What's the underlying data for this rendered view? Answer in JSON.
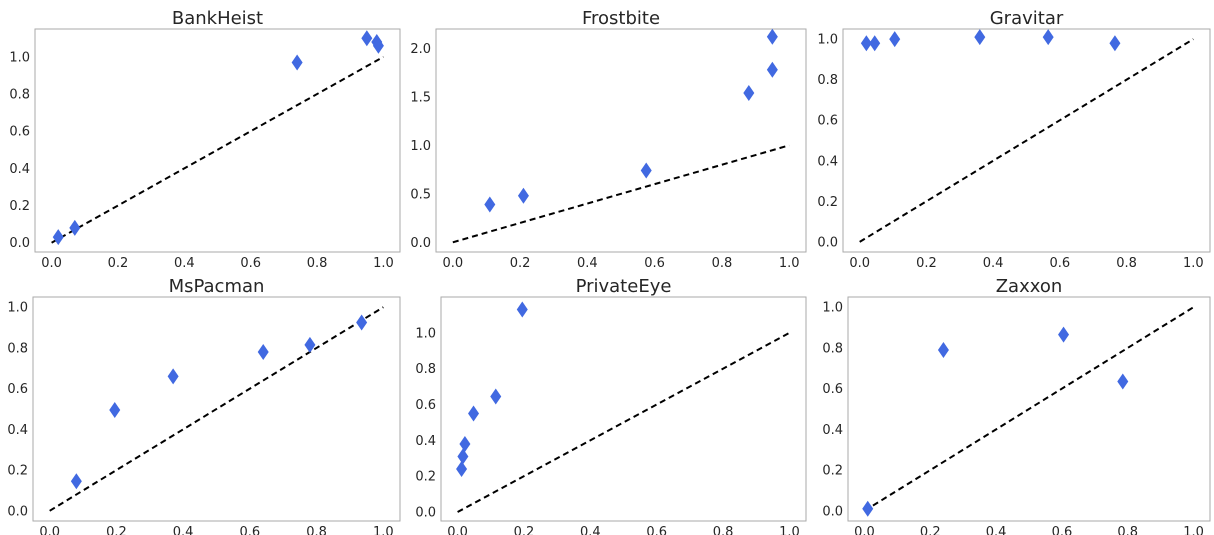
{
  "figure": {
    "marker_color": "#4169e1",
    "reference_line_color": "#000000",
    "reference_line_style": "dashed"
  },
  "chart_data": [
    {
      "type": "scatter",
      "title": "BankHeist",
      "xlabel": "",
      "ylabel": "",
      "xlim": [
        -0.05,
        1.05
      ],
      "ylim": [
        -0.05,
        1.15
      ],
      "xticks": [
        "0.0",
        "0.2",
        "0.4",
        "0.6",
        "0.8",
        "1.0"
      ],
      "yticks": [
        "0.0",
        "0.2",
        "0.4",
        "0.6",
        "0.8",
        "1.0"
      ],
      "grid": false,
      "x": [
        0.02,
        0.07,
        0.74,
        0.95,
        0.98,
        0.985
      ],
      "y": [
        0.03,
        0.08,
        0.97,
        1.1,
        1.08,
        1.06
      ],
      "reference_line": [
        [
          0,
          0
        ],
        [
          1,
          1
        ]
      ]
    },
    {
      "type": "scatter",
      "title": "Frostbite",
      "xlabel": "",
      "ylabel": "",
      "xlim": [
        -0.05,
        1.05
      ],
      "ylim": [
        -0.1,
        2.2
      ],
      "xticks": [
        "0.0",
        "0.2",
        "0.4",
        "0.6",
        "0.8",
        "1.0"
      ],
      "yticks": [
        "0.0",
        "0.5",
        "1.0",
        "1.5",
        "2.0"
      ],
      "grid": false,
      "x": [
        0.11,
        0.21,
        0.575,
        0.88,
        0.95,
        0.95
      ],
      "y": [
        0.39,
        0.48,
        0.74,
        1.54,
        1.78,
        2.12
      ],
      "reference_line": [
        [
          0,
          0
        ],
        [
          1,
          1
        ]
      ]
    },
    {
      "type": "scatter",
      "title": "Gravitar",
      "xlabel": "",
      "ylabel": "",
      "xlim": [
        -0.05,
        1.05
      ],
      "ylim": [
        -0.05,
        1.05
      ],
      "xticks": [
        "0.0",
        "0.2",
        "0.4",
        "0.6",
        "0.8",
        "1.0"
      ],
      "yticks": [
        "0.0",
        "0.2",
        "0.4",
        "0.6",
        "0.8",
        "1.0"
      ],
      "grid": false,
      "x": [
        0.02,
        0.045,
        0.105,
        0.36,
        0.565,
        0.765
      ],
      "y": [
        0.98,
        0.98,
        1.0,
        1.01,
        1.01,
        0.98
      ],
      "reference_line": [
        [
          0,
          0
        ],
        [
          1,
          1
        ]
      ]
    },
    {
      "type": "scatter",
      "title": "MsPacman",
      "xlabel": "",
      "ylabel": "",
      "xlim": [
        -0.05,
        1.05
      ],
      "ylim": [
        -0.05,
        1.05
      ],
      "xticks": [
        "0.0",
        "0.2",
        "0.4",
        "0.6",
        "0.8",
        "1.0"
      ],
      "yticks": [
        "0.0",
        "0.2",
        "0.4",
        "0.6",
        "0.8",
        "1.0"
      ],
      "grid": false,
      "x": [
        0.08,
        0.195,
        0.37,
        0.64,
        0.78,
        0.935
      ],
      "y": [
        0.145,
        0.495,
        0.66,
        0.78,
        0.815,
        0.925
      ],
      "reference_line": [
        [
          0,
          0
        ],
        [
          1,
          1
        ]
      ]
    },
    {
      "type": "scatter",
      "title": "PrivateEye",
      "xlabel": "",
      "ylabel": "",
      "xlim": [
        -0.05,
        1.05
      ],
      "ylim": [
        -0.05,
        1.2
      ],
      "xticks": [
        "0.0",
        "0.2",
        "0.4",
        "0.6",
        "0.8",
        "1.0"
      ],
      "yticks": [
        "0.0",
        "0.2",
        "0.4",
        "0.6",
        "0.8",
        "1.0"
      ],
      "grid": false,
      "x": [
        0.012,
        0.016,
        0.022,
        0.048,
        0.115,
        0.195
      ],
      "y": [
        0.24,
        0.31,
        0.38,
        0.55,
        0.645,
        1.13
      ],
      "reference_line": [
        [
          0,
          0
        ],
        [
          1,
          1
        ]
      ]
    },
    {
      "type": "scatter",
      "title": "Zaxxon",
      "xlabel": "",
      "ylabel": "",
      "xlim": [
        -0.05,
        1.05
      ],
      "ylim": [
        -0.05,
        1.05
      ],
      "xticks": [
        "0.0",
        "0.2",
        "0.4",
        "0.6",
        "0.8",
        "1.0"
      ],
      "yticks": [
        "0.0",
        "0.2",
        "0.4",
        "0.6",
        "0.8",
        "1.0"
      ],
      "grid": false,
      "x": [
        0.01,
        0.24,
        0.605,
        0.785
      ],
      "y": [
        0.01,
        0.79,
        0.865,
        0.635
      ],
      "reference_line": [
        [
          0,
          0
        ],
        [
          1,
          1
        ]
      ]
    }
  ]
}
